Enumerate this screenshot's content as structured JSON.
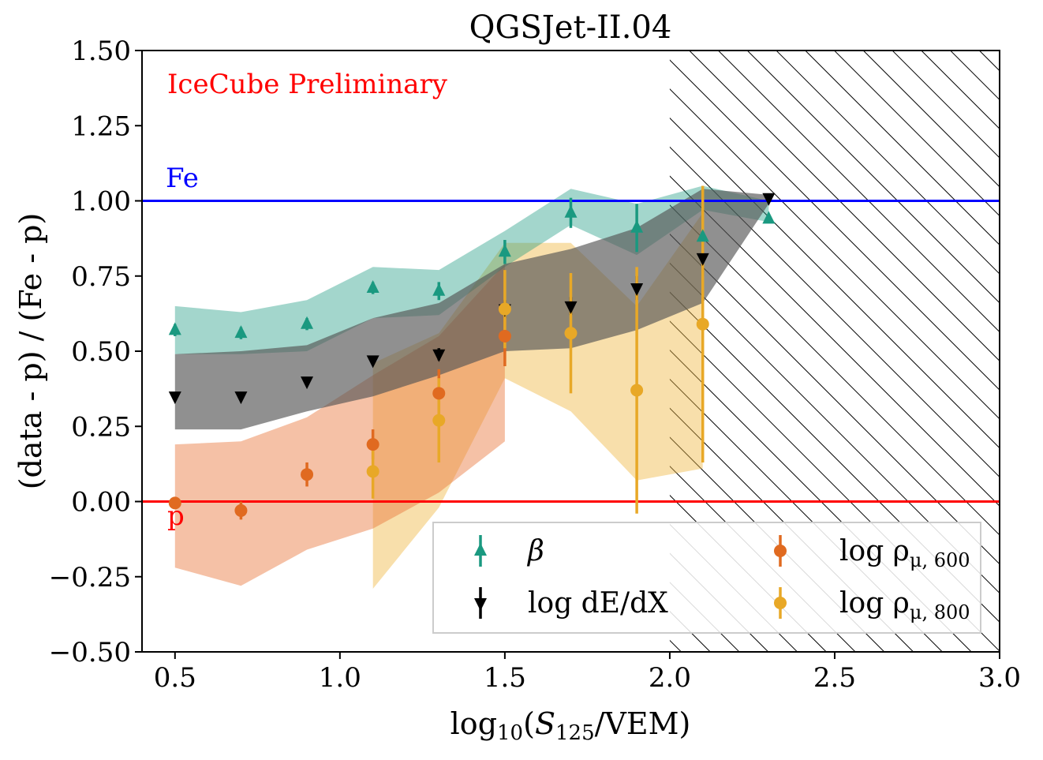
{
  "chart_data": {
    "type": "scatter",
    "title": "QGSJet-II.04",
    "annotation": "IceCube Preliminary",
    "annotation_color": "#ff0000",
    "xlabel": "log10(S125/VEM)",
    "ylabel": "(data - p) / (Fe - p)",
    "xlim": [
      0.4,
      3.0
    ],
    "ylim": [
      -0.5,
      1.5
    ],
    "xticks": [
      0.5,
      1.0,
      1.5,
      2.0,
      2.5,
      3.0
    ],
    "xtick_labels": [
      "0.5",
      "1.0",
      "1.5",
      "2.0",
      "2.5",
      "3.0"
    ],
    "yticks": [
      -0.5,
      -0.25,
      0.0,
      0.25,
      0.5,
      0.75,
      1.0,
      1.25,
      1.5
    ],
    "ytick_labels": [
      "−0.50",
      "−0.25",
      "0.00",
      "0.25",
      "0.50",
      "0.75",
      "1.00",
      "1.25",
      "1.50"
    ],
    "grid": false,
    "reference_lines": [
      {
        "label": "Fe",
        "y": 1.0,
        "color": "#0000ff"
      },
      {
        "label": "p",
        "y": 0.0,
        "color": "#ff0000"
      }
    ],
    "hatched_region": {
      "x_from": 2.0,
      "x_to": 3.0,
      "y_from": -0.5,
      "y_to": 1.5
    },
    "legend": {
      "location": "lower-right",
      "columns": 2
    },
    "series": [
      {
        "name": "beta",
        "legend_label": "β",
        "color": "#1a9980",
        "band_color": "#1a9980",
        "band_opacity": 0.4,
        "marker": "triangle-up",
        "x": [
          0.5,
          0.7,
          0.9,
          1.1,
          1.3,
          1.5,
          1.7,
          1.9,
          2.1,
          2.3
        ],
        "y": [
          0.57,
          0.56,
          0.59,
          0.71,
          0.7,
          0.83,
          0.96,
          0.91,
          0.88,
          0.94
        ],
        "err": [
          0.02,
          0.02,
          0.02,
          0.02,
          0.03,
          0.04,
          0.05,
          0.08,
          0.1,
          0.01
        ],
        "band_x": [
          0.5,
          0.7,
          0.9,
          1.1,
          1.3,
          1.5,
          1.7,
          1.9,
          2.1,
          2.3
        ],
        "band_lo": [
          0.49,
          0.49,
          0.5,
          0.61,
          0.62,
          0.78,
          0.92,
          0.82,
          0.97,
          0.93
        ],
        "band_hi": [
          0.65,
          0.63,
          0.67,
          0.78,
          0.77,
          0.9,
          1.04,
          0.99,
          1.05,
          1.0
        ]
      },
      {
        "name": "log dE/dX",
        "legend_label": "log dE/dX",
        "color": "#000000",
        "band_color": "#555555",
        "band_opacity": 0.65,
        "marker": "triangle-down",
        "x": [
          0.5,
          0.7,
          0.9,
          1.1,
          1.3,
          1.5,
          1.7,
          1.9,
          2.1,
          2.3
        ],
        "y": [
          0.35,
          0.35,
          0.4,
          0.47,
          0.49,
          0.64,
          0.65,
          0.71,
          0.81,
          1.01
        ],
        "err": [
          0.01,
          0.01,
          0.01,
          0.01,
          0.02,
          0.03,
          0.03,
          0.04,
          0.06,
          0.01
        ],
        "band_x": [
          0.5,
          0.7,
          0.9,
          1.1,
          1.3,
          1.5,
          1.7,
          1.9,
          2.1,
          2.3
        ],
        "band_lo": [
          0.24,
          0.24,
          0.3,
          0.35,
          0.42,
          0.5,
          0.51,
          0.57,
          0.66,
          0.99
        ],
        "band_hi": [
          0.49,
          0.5,
          0.52,
          0.61,
          0.66,
          0.79,
          0.84,
          0.91,
          1.04,
          1.02
        ]
      },
      {
        "name": "log rho mu 600",
        "legend_label": "log ρ",
        "legend_sub": "μ, 600",
        "color": "#e06a20",
        "band_color": "#e8763a",
        "band_opacity": 0.45,
        "marker": "circle",
        "x": [
          0.5,
          0.7,
          0.9,
          1.1,
          1.3,
          1.5
        ],
        "y": [
          -0.005,
          -0.03,
          0.09,
          0.19,
          0.36,
          0.55
        ],
        "err": [
          0.02,
          0.03,
          0.04,
          0.05,
          0.08,
          0.1
        ],
        "band_x": [
          0.5,
          0.7,
          0.9,
          1.1,
          1.3,
          1.5
        ],
        "band_lo": [
          -0.22,
          -0.28,
          -0.16,
          -0.09,
          0.03,
          0.2
        ],
        "band_hi": [
          0.19,
          0.2,
          0.28,
          0.42,
          0.55,
          0.79
        ]
      },
      {
        "name": "log rho mu 800",
        "legend_label": "log ρ",
        "legend_sub": "μ, 800",
        "color": "#e8a827",
        "band_color": "#f0b845",
        "band_opacity": 0.45,
        "marker": "circle",
        "x": [
          1.1,
          1.3,
          1.5,
          1.7,
          1.9,
          2.1
        ],
        "y": [
          0.1,
          0.27,
          0.64,
          0.56,
          0.37,
          0.59
        ],
        "err": [
          0.09,
          0.14,
          0.13,
          0.2,
          0.41,
          0.46
        ],
        "band_x": [
          1.1,
          1.3,
          1.5,
          1.7,
          1.9,
          2.1
        ],
        "band_lo": [
          -0.29,
          -0.02,
          0.41,
          0.3,
          0.07,
          0.11
        ],
        "band_hi": [
          0.46,
          0.56,
          0.86,
          0.86,
          0.65,
          0.96
        ]
      }
    ]
  }
}
